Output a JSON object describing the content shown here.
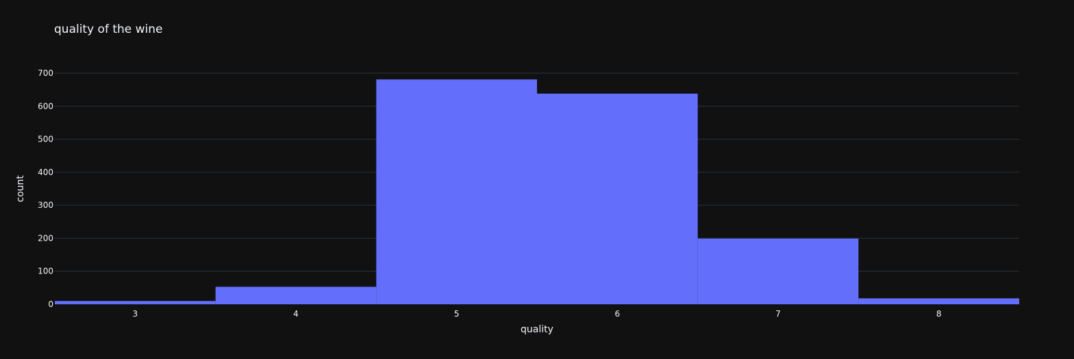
{
  "chart_data": {
    "type": "bar",
    "title": "quality of the wine",
    "xlabel": "quality",
    "ylabel": "count",
    "categories": [
      "3",
      "4",
      "5",
      "6",
      "7",
      "8"
    ],
    "values": [
      10,
      53,
      681,
      638,
      199,
      18
    ],
    "ylim": [
      0,
      700
    ],
    "yticks": [
      0,
      100,
      200,
      300,
      400,
      500,
      600,
      700
    ],
    "grid": true,
    "colors": {
      "background": "#111111",
      "bar": "#636efa",
      "grid": "#283442",
      "text": "#f2f5fa"
    }
  }
}
